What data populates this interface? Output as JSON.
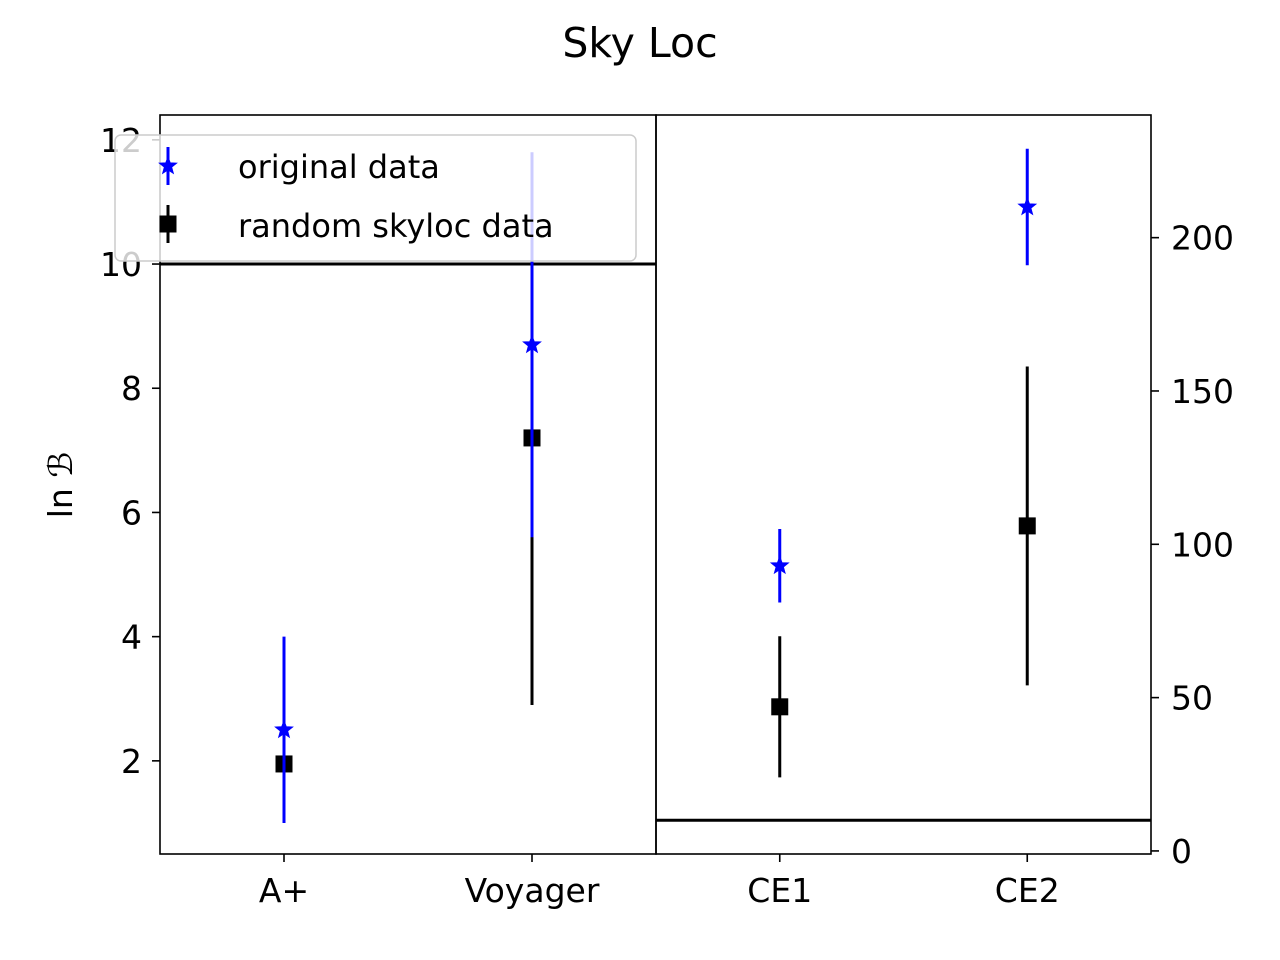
{
  "chart_data": {
    "type": "scatter",
    "title": "Sky Loc",
    "ylabel": "ln ℬ",
    "legend_position": "upper-left",
    "grid": false,
    "colors": {
      "original": "#0000ff",
      "random": "#000000",
      "threshold_line": "#000000"
    },
    "panels": [
      {
        "name": "left",
        "categories": [
          "A+",
          "Voyager"
        ],
        "y_axis_side": "left",
        "ylim": [
          0.5,
          12.4
        ],
        "yticks": [
          2,
          4,
          6,
          8,
          10,
          12
        ],
        "threshold_line": 10,
        "series": [
          {
            "name": "original data",
            "marker": "star",
            "values": [
              2.5,
              8.7
            ],
            "err_low": [
              1.5,
              3.1
            ],
            "err_high": [
              1.5,
              3.1
            ]
          },
          {
            "name": "random skyloc data",
            "marker": "square",
            "values": [
              1.95,
              7.2
            ],
            "err_low": [
              0.85,
              4.3
            ],
            "err_high": [
              0.85,
              4.3
            ]
          }
        ]
      },
      {
        "name": "right",
        "categories": [
          "CE1",
          "CE2"
        ],
        "y_axis_side": "right",
        "ylim": [
          -1,
          240
        ],
        "yticks": [
          0,
          50,
          100,
          150,
          200
        ],
        "threshold_line": 10,
        "series": [
          {
            "name": "original data",
            "marker": "star",
            "values": [
              93,
              210
            ],
            "err_low": [
              12,
              19
            ],
            "err_high": [
              12,
              19
            ]
          },
          {
            "name": "random skyloc data",
            "marker": "square",
            "values": [
              47,
              106
            ],
            "err_low": [
              23,
              52
            ],
            "err_high": [
              23,
              52
            ]
          }
        ]
      }
    ]
  }
}
